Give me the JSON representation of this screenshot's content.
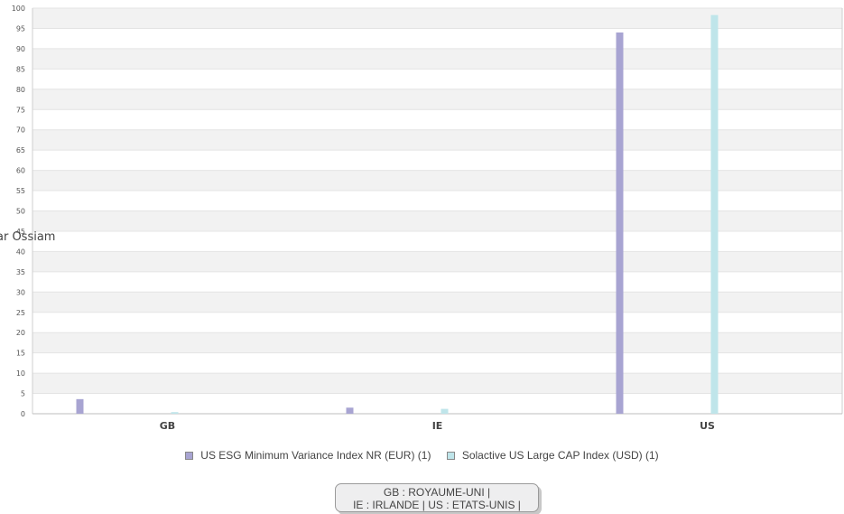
{
  "chart_data": {
    "type": "bar",
    "categories": [
      "GB",
      "IE",
      "US"
    ],
    "series": [
      {
        "name": "US ESG Minimum Variance Index NR (EUR) (1)",
        "color": "#a8a4d2",
        "values": [
          3.6,
          1.5,
          94.0
        ]
      },
      {
        "name": "Solactive US Large CAP Index (USD) (1)",
        "color": "#bfe5ea",
        "values": [
          0.4,
          1.2,
          98.3
        ]
      }
    ],
    "yticks": [
      0,
      5,
      10,
      15,
      20,
      25,
      30,
      35,
      40,
      45,
      50,
      55,
      60,
      65,
      70,
      75,
      80,
      85,
      90,
      95,
      100
    ],
    "ylim": [
      0,
      100
    ],
    "grid": "horizontal bands",
    "legend_position": "bottom"
  },
  "watermark": "ar Ossiam",
  "note": {
    "line1": "GB  :  ROYAUME-UNI |",
    "line2": "IE  :  IRLANDE | US  :  ETATS-UNIS |"
  }
}
